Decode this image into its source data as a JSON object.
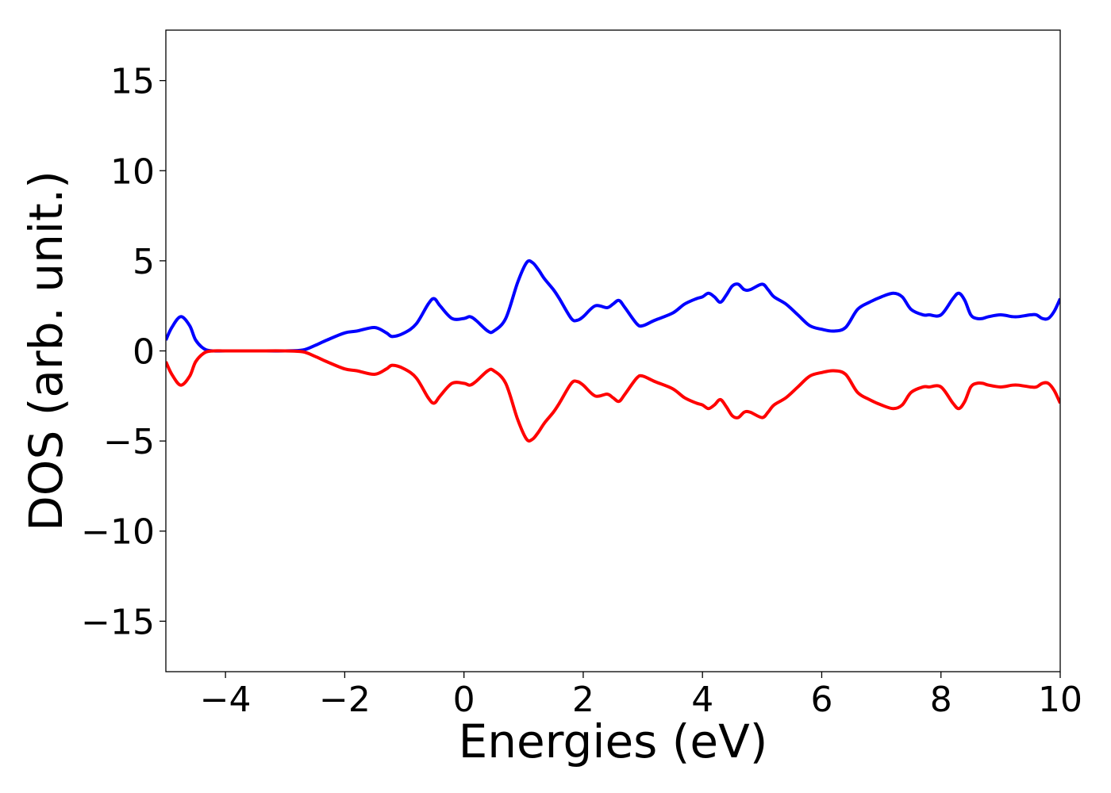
{
  "chart_data": {
    "type": "line",
    "title": "",
    "xlabel": "Energies (eV)",
    "ylabel": "DOS (arb. unit.)",
    "xlim": [
      -5,
      10
    ],
    "ylim": [
      -17.8,
      17.8
    ],
    "grid": false,
    "legend": "none",
    "x_ticks": [
      -4,
      -2,
      0,
      2,
      4,
      6,
      8,
      10
    ],
    "x_tick_labels": [
      "−4",
      "−2",
      "0",
      "2",
      "4",
      "6",
      "8",
      "10"
    ],
    "y_ticks": [
      15,
      10,
      5,
      0,
      -5,
      -10,
      -15
    ],
    "y_tick_labels": [
      "15",
      "10",
      "5",
      "0",
      "−5",
      "−10",
      "−15"
    ],
    "series": [
      {
        "color": "#0000ff",
        "x": [
          -5.0,
          -4.9,
          -4.75,
          -4.6,
          -4.5,
          -4.35,
          -4.2,
          -4.0,
          -3.5,
          -3.0,
          -2.7,
          -2.5,
          -2.3,
          -2.0,
          -1.8,
          -1.5,
          -1.3,
          -1.2,
          -1.0,
          -0.8,
          -0.6,
          -0.5,
          -0.4,
          -0.2,
          0.0,
          0.1,
          0.2,
          0.4,
          0.5,
          0.7,
          0.9,
          1.05,
          1.15,
          1.25,
          1.35,
          1.5,
          1.6,
          1.8,
          1.9,
          2.0,
          2.2,
          2.4,
          2.5,
          2.6,
          2.7,
          2.9,
          3.0,
          3.2,
          3.5,
          3.7,
          3.9,
          4.0,
          4.1,
          4.2,
          4.3,
          4.4,
          4.5,
          4.6,
          4.7,
          4.8,
          5.0,
          5.1,
          5.2,
          5.4,
          5.6,
          5.8,
          6.0,
          6.2,
          6.4,
          6.6,
          6.8,
          7.0,
          7.2,
          7.35,
          7.5,
          7.7,
          7.8,
          8.0,
          8.2,
          8.3,
          8.4,
          8.5,
          8.6,
          8.7,
          8.8,
          9.0,
          9.2,
          9.3,
          9.5,
          9.6,
          9.7,
          9.8,
          9.9,
          10.0
        ],
        "y": [
          0.6,
          1.3,
          1.9,
          1.4,
          0.6,
          0.1,
          0.0,
          0.0,
          0.0,
          0.0,
          0.05,
          0.3,
          0.6,
          1.0,
          1.1,
          1.3,
          1.0,
          0.8,
          1.0,
          1.5,
          2.6,
          2.9,
          2.5,
          1.8,
          1.8,
          1.9,
          1.7,
          1.1,
          1.1,
          1.8,
          3.8,
          4.9,
          4.9,
          4.5,
          4.0,
          3.4,
          2.9,
          1.8,
          1.7,
          1.9,
          2.5,
          2.4,
          2.6,
          2.8,
          2.4,
          1.5,
          1.4,
          1.7,
          2.1,
          2.6,
          2.9,
          3.0,
          3.2,
          3.0,
          2.7,
          3.1,
          3.6,
          3.7,
          3.4,
          3.4,
          3.7,
          3.4,
          3.0,
          2.6,
          2.0,
          1.4,
          1.2,
          1.1,
          1.3,
          2.3,
          2.7,
          3.0,
          3.2,
          3.0,
          2.3,
          2.0,
          2.0,
          2.0,
          2.9,
          3.2,
          2.8,
          2.0,
          1.8,
          1.8,
          1.9,
          2.0,
          1.9,
          1.9,
          2.0,
          2.0,
          1.8,
          1.8,
          2.2,
          2.9
        ]
      },
      {
        "color": "#ff0000",
        "x": [
          -5.0,
          -4.9,
          -4.75,
          -4.6,
          -4.5,
          -4.35,
          -4.2,
          -4.0,
          -3.5,
          -3.0,
          -2.7,
          -2.5,
          -2.3,
          -2.0,
          -1.8,
          -1.5,
          -1.3,
          -1.2,
          -1.0,
          -0.8,
          -0.6,
          -0.5,
          -0.4,
          -0.2,
          0.0,
          0.1,
          0.2,
          0.4,
          0.5,
          0.7,
          0.9,
          1.05,
          1.15,
          1.25,
          1.35,
          1.5,
          1.6,
          1.8,
          1.9,
          2.0,
          2.2,
          2.4,
          2.5,
          2.6,
          2.7,
          2.9,
          3.0,
          3.2,
          3.5,
          3.7,
          3.9,
          4.0,
          4.1,
          4.2,
          4.3,
          4.4,
          4.5,
          4.6,
          4.7,
          4.8,
          5.0,
          5.1,
          5.2,
          5.4,
          5.6,
          5.8,
          6.0,
          6.2,
          6.4,
          6.6,
          6.8,
          7.0,
          7.2,
          7.35,
          7.5,
          7.7,
          7.8,
          8.0,
          8.2,
          8.3,
          8.4,
          8.5,
          8.6,
          8.7,
          8.8,
          9.0,
          9.2,
          9.3,
          9.5,
          9.6,
          9.7,
          9.8,
          9.9,
          10.0
        ],
        "y": [
          -0.6,
          -1.3,
          -1.9,
          -1.4,
          -0.6,
          -0.1,
          0.0,
          0.0,
          0.0,
          0.0,
          -0.05,
          -0.3,
          -0.6,
          -1.0,
          -1.1,
          -1.3,
          -1.0,
          -0.8,
          -1.0,
          -1.5,
          -2.6,
          -2.9,
          -2.5,
          -1.8,
          -1.8,
          -1.9,
          -1.7,
          -1.1,
          -1.1,
          -1.8,
          -3.8,
          -4.9,
          -4.9,
          -4.5,
          -4.0,
          -3.4,
          -2.9,
          -1.8,
          -1.7,
          -1.9,
          -2.5,
          -2.4,
          -2.6,
          -2.8,
          -2.4,
          -1.5,
          -1.4,
          -1.7,
          -2.1,
          -2.6,
          -2.9,
          -3.0,
          -3.2,
          -3.0,
          -2.7,
          -3.1,
          -3.6,
          -3.7,
          -3.4,
          -3.4,
          -3.7,
          -3.4,
          -3.0,
          -2.6,
          -2.0,
          -1.4,
          -1.2,
          -1.1,
          -1.3,
          -2.3,
          -2.7,
          -3.0,
          -3.2,
          -3.0,
          -2.3,
          -2.0,
          -2.0,
          -2.0,
          -2.9,
          -3.2,
          -2.8,
          -2.0,
          -1.8,
          -1.8,
          -1.9,
          -2.0,
          -1.9,
          -1.9,
          -2.0,
          -2.0,
          -1.8,
          -1.8,
          -2.2,
          -2.9
        ]
      }
    ]
  }
}
